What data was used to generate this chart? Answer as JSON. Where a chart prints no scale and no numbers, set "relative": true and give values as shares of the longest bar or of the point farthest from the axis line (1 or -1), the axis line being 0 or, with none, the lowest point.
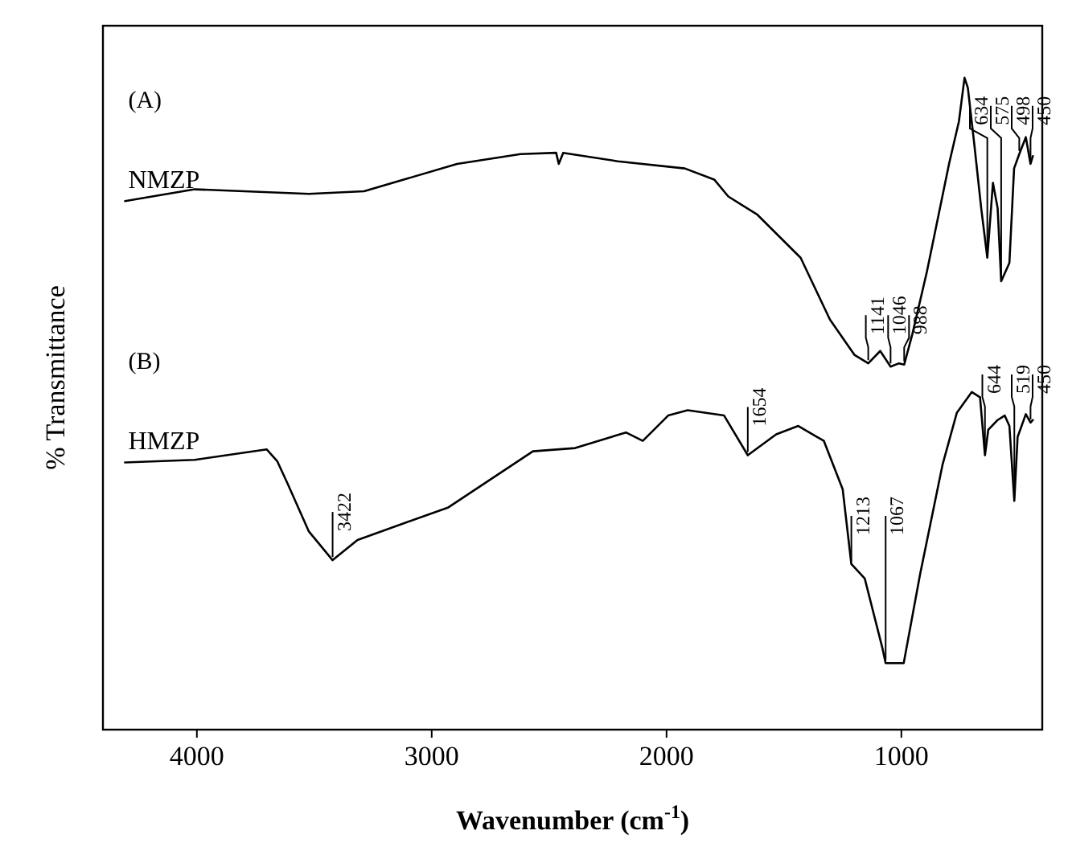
{
  "chart_data": {
    "type": "line",
    "relative": true,
    "xlabel": "Wavenumber (cm$^{-1}$)",
    "ylabel": "% Transmittance",
    "xlim": [
      4400,
      400
    ],
    "xticks": [
      4000,
      3000,
      2000,
      1000
    ],
    "line_style": "solid",
    "series": [
      {
        "name": "NMZP",
        "color": "#000000",
        "x": [
          4306,
          4009,
          3523,
          3288,
          2892,
          2622,
          2470,
          2459,
          2440,
          2207,
          1922,
          1797,
          1737,
          1613,
          1429,
          1304,
          1200,
          1141,
          1090,
          1046,
          1010,
          988,
          953,
          891,
          797,
          755,
          731,
          717,
          690,
          660,
          634,
          610,
          590,
          575,
          540,
          520,
          498,
          470,
          450,
          440
        ],
        "values": [
          0.811,
          0.829,
          0.822,
          0.826,
          0.868,
          0.883,
          0.885,
          0.868,
          0.885,
          0.872,
          0.861,
          0.844,
          0.818,
          0.79,
          0.724,
          0.629,
          0.575,
          0.562,
          0.581,
          0.557,
          0.562,
          0.56,
          0.607,
          0.703,
          0.868,
          0.933,
          1,
          0.985,
          0.9,
          0.8,
          0.724,
          0.839,
          0.8,
          0.688,
          0.716,
          0.861,
          0.883,
          0.909,
          0.868,
          0.88
        ]
      },
      {
        "name": "HMZP",
        "color": "#000000",
        "x": [
          4306,
          4009,
          3703,
          3658,
          3613,
          3523,
          3422,
          3316,
          2929,
          2569,
          2389,
          2173,
          2101,
          1993,
          1910,
          1755,
          1654,
          1533,
          1439,
          1330,
          1250,
          1213,
          1156,
          1080,
          1067,
          990,
          920,
          825,
          764,
          700,
          665,
          644,
          630,
          590,
          560,
          540,
          519,
          505,
          470,
          450,
          440
        ],
        "values": [
          0.41,
          0.414,
          0.43,
          0.412,
          0.377,
          0.304,
          0.26,
          0.291,
          0.341,
          0.427,
          0.432,
          0.456,
          0.443,
          0.482,
          0.49,
          0.482,
          0.421,
          0.453,
          0.466,
          0.443,
          0.369,
          0.254,
          0.232,
          0.124,
          0.102,
          0.102,
          0.239,
          0.406,
          0.486,
          0.518,
          0.51,
          0.421,
          0.46,
          0.475,
          0.482,
          0.466,
          0.351,
          0.449,
          0.484,
          0.471,
          0.475
        ]
      }
    ],
    "annotations": [
      "(A)",
      "(B)",
      {
        "text": "1141",
        "x": 1141,
        "y": 0.562
      },
      {
        "text": "1046",
        "x": 1046,
        "y": 0.557
      },
      {
        "text": "988",
        "x": 988,
        "y": 0.56
      },
      {
        "text": "634",
        "x": 634,
        "y": 0.724
      },
      {
        "text": "575",
        "x": 575,
        "y": 0.688
      },
      {
        "text": "498",
        "x": 498,
        "y": 0.883
      },
      {
        "text": "450",
        "x": 450,
        "y": 0.868
      },
      {
        "text": "3422",
        "x": 3422,
        "y": 0.26
      },
      {
        "text": "1654",
        "x": 1654,
        "y": 0.421
      },
      {
        "text": "1213",
        "x": 1213,
        "y": 0.254
      },
      {
        "text": "1067",
        "x": 1067,
        "y": 0.102
      },
      {
        "text": "644",
        "x": 644,
        "y": 0.421
      },
      {
        "text": "519",
        "x": 519,
        "y": 0.351
      },
      {
        "text": "450",
        "x": 450,
        "y": 0.471
      }
    ]
  }
}
